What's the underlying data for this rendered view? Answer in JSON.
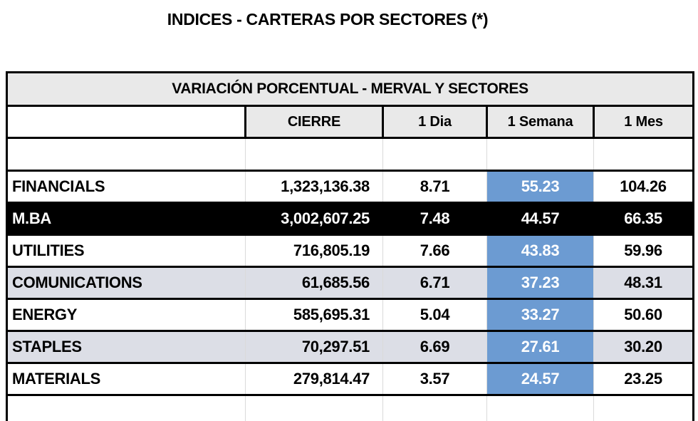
{
  "page_title": "INDICES - CARTERAS POR SECTORES (*)",
  "table": {
    "banner": "VARIACIÓN PORCENTUAL - MERVAL Y SECTORES",
    "columns": [
      "CIERRE",
      "1 Dia",
      "1 Semana",
      "1 Mes"
    ],
    "rows": [
      {
        "label": "FINANCIALS",
        "cierre": "1,323,136.38",
        "dia": "8.71",
        "semana": "55.23",
        "mes": "104.26"
      },
      {
        "label": "M.BA",
        "cierre": "3,002,607.25",
        "dia": "7.48",
        "semana": "44.57",
        "mes": "66.35"
      },
      {
        "label": "UTILITIES",
        "cierre": "716,805.19",
        "dia": "7.66",
        "semana": "43.83",
        "mes": "59.96"
      },
      {
        "label": "COMUNICATIONS",
        "cierre": "61,685.56",
        "dia": "6.71",
        "semana": "37.23",
        "mes": "48.31"
      },
      {
        "label": "ENERGY",
        "cierre": "585,695.31",
        "dia": "5.04",
        "semana": "33.27",
        "mes": "50.60"
      },
      {
        "label": "STAPLES",
        "cierre": "70,297.51",
        "dia": "6.69",
        "semana": "27.61",
        "mes": "30.20"
      },
      {
        "label": "MATERIALS",
        "cierre": "279,814.47",
        "dia": "3.57",
        "semana": "24.57",
        "mes": "23.25"
      }
    ]
  },
  "colors": {
    "highlight_blue": "#6C9BD2",
    "stripe_gray": "#DCDEE6",
    "header_gray": "#E9E9E9",
    "emphasis_black": "#000000"
  },
  "chart_data": {
    "type": "table",
    "title": "INDICES - CARTERAS POR SECTORES (*)",
    "subtitle": "VARIACIÓN PORCENTUAL - MERVAL Y SECTORES",
    "columns": [
      "",
      "CIERRE",
      "1 Dia",
      "1 Semana",
      "1 Mes"
    ],
    "rows": [
      [
        "FINANCIALS",
        1323136.38,
        8.71,
        55.23,
        104.26
      ],
      [
        "M.BA",
        3002607.25,
        7.48,
        44.57,
        66.35
      ],
      [
        "UTILITIES",
        716805.19,
        7.66,
        43.83,
        59.96
      ],
      [
        "COMUNICATIONS",
        61685.56,
        6.71,
        37.23,
        48.31
      ],
      [
        "ENERGY",
        585695.31,
        5.04,
        33.27,
        50.6
      ],
      [
        "STAPLES",
        70297.51,
        6.69,
        27.61,
        30.2
      ],
      [
        "MATERIALS",
        279814.47,
        3.57,
        24.57,
        23.25
      ]
    ],
    "layout_hints": {
      "highlighted_column": "1 Semana",
      "emphasized_row": "M.BA",
      "striped_rows": [
        "COMUNICATIONS",
        "STAPLES"
      ]
    }
  }
}
